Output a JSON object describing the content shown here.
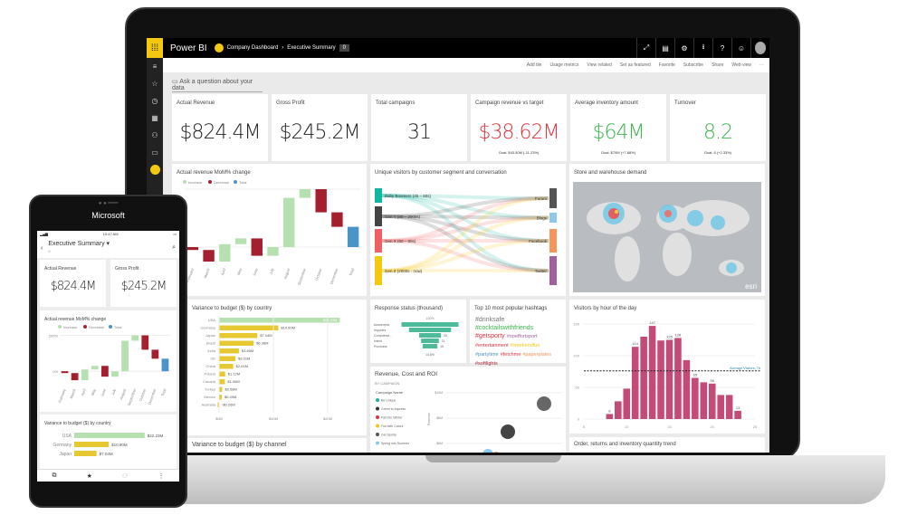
{
  "app": {
    "title": "Power BI",
    "breadcrumb": [
      "Company Dashboard",
      "Executive Summary"
    ],
    "badge": "0"
  },
  "topbar_icons": [
    "expand-icon",
    "comment-icon",
    "gear-icon",
    "download-icon",
    "help-icon",
    "smiley-icon"
  ],
  "actions": [
    "Add tile",
    "Usage metrics",
    "View related",
    "Set as featured",
    "Favorite",
    "Subscribe",
    "Share",
    "Web view",
    "⋯"
  ],
  "qa_placeholder": "Ask a question about your data",
  "kpis": [
    {
      "title": "Actual Revenue",
      "value": "$824.4M",
      "goal": "",
      "color": "#222222"
    },
    {
      "title": "Gross Profit",
      "value": "$245.2M",
      "goal": "",
      "color": "#222222"
    },
    {
      "title": "Total campaigns",
      "value": "31",
      "goal": "",
      "color": "#222222"
    },
    {
      "title": "Campaign revenue vs target",
      "value": "$38.62M",
      "goal": "Goal: $43.50M (-11.23%)",
      "color": "#e0323f"
    },
    {
      "title": "Average inventory amount",
      "value": "$64M",
      "goal": "Goal: $70M (+7.88%)",
      "color": "#3cb44b"
    },
    {
      "title": "Turnover",
      "value": "8.2",
      "goal": "Goal: 8 (+2.33%)",
      "color": "#3cb44b"
    }
  ],
  "waterfall": {
    "title": "Actual revenue MoM% change",
    "legend": [
      "Increase",
      "Decrease",
      "Total"
    ],
    "colors": {
      "increase": "#b6e0b0",
      "decrease": "#a4202f",
      "total": "#4a94c8"
    },
    "yticks": [
      "200%",
      "0%"
    ],
    "categories": [
      "February",
      "March",
      "April",
      "May",
      "June",
      "July",
      "August",
      "September",
      "October",
      "December",
      "Total"
    ],
    "deltas": [
      -10,
      -40,
      60,
      20,
      -60,
      30,
      170,
      30,
      -80,
      -50,
      null
    ]
  },
  "sankey": {
    "title": "Unique visitors by customer segment and conversation",
    "sources": [
      "Baby Boomers (45 – 60s)",
      "Gen Y (80 – 2000s)",
      "Gen X (60 – 80s)",
      "Gen Z (2000s - now)"
    ],
    "targets": [
      "Forum",
      "Blogs",
      "Facebook",
      "Twitter"
    ],
    "source_colors": [
      "#12b5a0",
      "#444444",
      "#f06060",
      "#f2c811"
    ],
    "target_colors": [
      "#555555",
      "#8ec9ea",
      "#f7955a",
      "#a25fa0"
    ]
  },
  "map": {
    "title": "Store and warehouse demand",
    "credit": "esri"
  },
  "budget_country": {
    "title": "Variance to budget ($) by country",
    "countries": [
      "USA",
      "Germany",
      "Japan",
      "Brazil",
      "India",
      "UK",
      "China",
      "Poland",
      "Canada",
      "Turkey",
      "Mexico",
      "Australia"
    ],
    "values": [
      22.23,
      10.9,
      7.04,
      6.36,
      3.65,
      3.01,
      2.61,
      1.12,
      1.06,
      0.58,
      0.49,
      -0.26
    ],
    "labels": [
      "$22.23M",
      "$10.90M",
      "$7.04M",
      "$6.36M",
      "$3.65M",
      "$3.01M",
      "$2.61M",
      "$1.12M",
      "$1.06M",
      "$0.58M",
      "$0.49M",
      "-$0.26M"
    ],
    "xticks": [
      "$0M",
      "$10M",
      "$20M"
    ]
  },
  "budget_channel": {
    "title": "Variance to budget ($) by channel"
  },
  "funnel": {
    "title": "Response status (thousand)",
    "top": "100%",
    "bottom": "14.8%",
    "stages": [
      "Awareness",
      "Inquiries",
      "Considerat...",
      "Intent",
      "Purchase"
    ],
    "values": [
      100,
      70,
      29,
      21,
      15
    ],
    "labels": [
      "",
      "",
      "29",
      "21",
      "15"
    ]
  },
  "hashtags": {
    "title": "Top 10 most popular hashtags",
    "tags": [
      {
        "t": "#drinksafe",
        "c": "#777777"
      },
      {
        "t": "#cocktailswithfriends",
        "c": "#3cb44b"
      },
      {
        "t": "#getsporty",
        "c": "#e0323f"
      },
      {
        "t": "#noeffortsport",
        "c": "#a25fa0"
      },
      {
        "t": "#entertainment",
        "c": "#e0323f"
      },
      {
        "t": "#weekendfun",
        "c": "#f2c811"
      },
      {
        "t": "#partytime",
        "c": "#4a94c8"
      },
      {
        "t": "#fetchme",
        "c": "#e0323f"
      },
      {
        "t": "#paperplates",
        "c": "#f7955a"
      },
      {
        "t": "#softlights",
        "c": "#a4202f"
      }
    ]
  },
  "roi": {
    "title": "Revenue, Cost and ROI",
    "subtitle": "BY CAMPAIGN",
    "legend_title": "Campaign Name",
    "campaigns": [
      {
        "n": "Be Unique",
        "c": "#12b5a0"
      },
      {
        "n": "Green to Impress",
        "c": "#333333"
      },
      {
        "n": "Fall into Winter",
        "c": "#e0323f"
      },
      {
        "n": "Fun with Colors",
        "c": "#f2c811"
      },
      {
        "n": "Get Sporty",
        "c": "#555555"
      },
      {
        "n": "Spring into Summer",
        "c": "#8ec9ea"
      }
    ],
    "yticks": [
      "$10M",
      "$8M",
      "$6M"
    ],
    "ylabel": "Revenue"
  },
  "visitors": {
    "title": "Visitors by hour of the day",
    "hours": [
      8,
      9,
      10,
      11,
      12,
      13,
      14,
      15,
      16,
      17,
      18,
      19,
      20,
      21,
      22,
      23
    ],
    "values": [
      8,
      28,
      48,
      114,
      130,
      147,
      124,
      125,
      128,
      93,
      65,
      58,
      56,
      38,
      38,
      13
    ],
    "labels": {
      "8": "8",
      "11": "114",
      "13": "147",
      "15": "125",
      "16": "128",
      "18": "65",
      "20": "56",
      "23": "13"
    },
    "average": 76,
    "average_label": "Average Visitors: 76",
    "xticks": [
      5,
      10,
      15,
      20,
      25
    ],
    "yticks": [
      0,
      50,
      100,
      150
    ],
    "color": "#c44a78"
  },
  "order_trend": {
    "title": "Order, returns and inventory quantity trend"
  },
  "phone": {
    "brand": "Microsoft",
    "time": "10:47 AM",
    "title": "Executive Summary",
    "subtitle": "0",
    "kpis": [
      {
        "title": "Actual Revenue",
        "value": "$824.4M"
      },
      {
        "title": "Gross Profit",
        "value": "$245.2M"
      }
    ],
    "chart_title": "Actual revenue MoM% change",
    "budget_title": "Variance to budget ($) by country",
    "budget": [
      {
        "c": "USA",
        "v": 22.23,
        "l": "$22.23M"
      },
      {
        "c": "Germany",
        "v": 10.9,
        "l": "$10.90M"
      },
      {
        "c": "Japan",
        "v": 7.04,
        "l": "$7.04M"
      }
    ],
    "nav": [
      "reports-icon",
      "star-icon",
      "person-icon",
      "more-icon"
    ]
  }
}
